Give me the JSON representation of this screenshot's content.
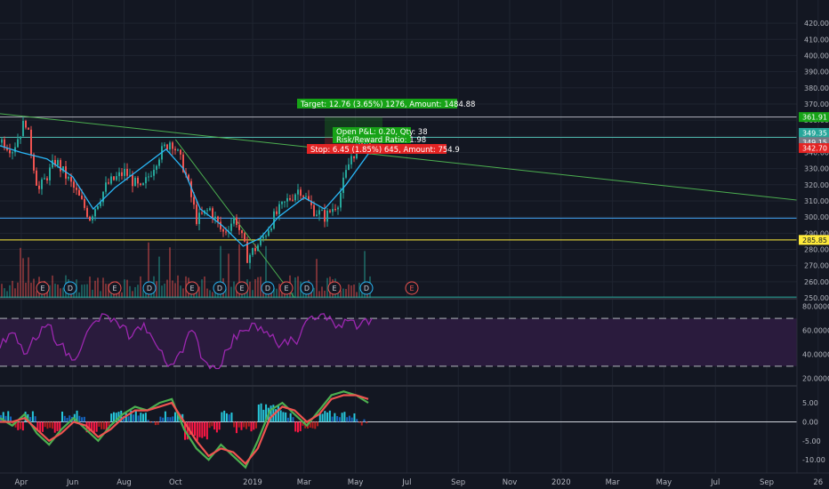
{
  "colors": {
    "background": "#131722",
    "grid": "#1f2430",
    "axis_text": "#b2b5be",
    "candle_up": "#26a69a",
    "candle_down": "#ef5350",
    "ma_line": "#29b6f6",
    "trend_line": "#4caf50",
    "hline_blue": "#42a5f5",
    "hline_yellow": "#ffeb3b",
    "hline_gray": "#b2b5be",
    "rsi_line": "#9c27b0",
    "rsi_band": "#2a1b3d",
    "macd_fast": "#4caf50",
    "macd_slow": "#ef5350",
    "target_green": "#17a317",
    "stop_red": "#e32424"
  },
  "chart_data": [
    {
      "type": "line",
      "panel": "price",
      "y_ticks": [
        "420.00",
        "410.00",
        "400.00",
        "390.00",
        "380.00",
        "370.00",
        "360.00",
        "350.00",
        "340.00",
        "330.00",
        "320.00",
        "310.00",
        "300.00",
        "290.00",
        "280.00",
        "270.00",
        "260.00",
        "250.00"
      ],
      "ylim": [
        250,
        425
      ],
      "x_ticks": [
        "Apr",
        "Jun",
        "Aug",
        "Oct",
        "2019",
        "Mar",
        "May",
        "Jul",
        "Sep",
        "Nov",
        "2020",
        "Mar",
        "May",
        "Jul",
        "Sep",
        "26"
      ],
      "series": [
        {
          "x": [
            "2018-03-01",
            "2018-03-20",
            "2018-04-05",
            "2018-04-20",
            "2018-05-10",
            "2018-06-01",
            "2018-06-20",
            "2018-07-10",
            "2018-08-01",
            "2018-08-20",
            "2018-09-10",
            "2018-09-25",
            "2018-10-10",
            "2018-10-25",
            "2018-11-10",
            "2018-11-25",
            "2018-12-10",
            "2018-12-24",
            "2019-01-10",
            "2019-01-25",
            "2019-02-10",
            "2019-02-25",
            "2019-03-10",
            "2019-03-25",
            "2019-04-10",
            "2019-04-25",
            "2019-05-10",
            "2019-05-20"
          ],
          "values": [
            350,
            342,
            360,
            316,
            335,
            318,
            300,
            320,
            328,
            316,
            338,
            348,
            330,
            298,
            305,
            290,
            300,
            275,
            285,
            300,
            310,
            318,
            305,
            300,
            310,
            338,
            346,
            342
          ]
        },
        {
          "x": [
            "2018-03-01",
            "2018-04-01",
            "2018-05-01",
            "2018-06-01",
            "2018-06-25",
            "2018-07-20",
            "2018-08-20",
            "2018-09-20",
            "2018-10-10",
            "2018-10-30",
            "2018-11-25",
            "2018-12-20",
            "2019-01-10",
            "2019-02-01",
            "2019-03-01",
            "2019-03-25",
            "2019-04-20",
            "2019-05-20"
          ],
          "values": [
            345,
            340,
            336,
            325,
            305,
            318,
            330,
            342,
            330,
            305,
            295,
            282,
            287,
            300,
            312,
            305,
            320,
            342
          ]
        }
      ],
      "volume_markers": [
        "E",
        "D",
        "E",
        "D",
        "E",
        "D",
        "E",
        "D",
        "E",
        "D",
        "E",
        "D",
        "E"
      ],
      "price_labels": [
        "361.91",
        "349.35",
        "349.15",
        "342.70",
        "285.85"
      ],
      "annotations": {
        "target": "Target: 12.76 (3.65%) 1276, Amount: 1484.88",
        "open_pl": "Open P&L: 0.20, Qty: 38",
        "risk_reward": "Risk/Reward Ratio: 1.98",
        "stop": "Stop: 6.45 (1.85%) 645, Amount: 754.9"
      }
    },
    {
      "type": "line",
      "panel": "rsi",
      "y_ticks": [
        "80.0000",
        "60.0000",
        "40.0000",
        "20.0000"
      ],
      "ylim": [
        15,
        85
      ],
      "bands": [
        30,
        70
      ],
      "values": [
        45,
        58,
        40,
        52,
        65,
        48,
        35,
        52,
        68,
        72,
        62,
        55,
        66,
        48,
        30,
        42,
        60,
        35,
        28,
        44,
        60,
        66,
        58,
        50,
        48,
        55,
        72,
        74,
        62,
        68,
        64,
        70
      ]
    },
    {
      "type": "line",
      "panel": "macd",
      "y_ticks": [
        "5.00",
        "0.00",
        "-5.00",
        "-10.00"
      ],
      "ylim": [
        -13,
        9
      ],
      "series": [
        {
          "values": [
            1,
            -1,
            2,
            -3,
            -6,
            -2,
            1,
            -2,
            -5,
            -1,
            2,
            4,
            3,
            5,
            6,
            -2,
            -7,
            -10,
            -6,
            -9,
            -12,
            -5,
            3,
            5,
            2,
            -1,
            3,
            7,
            8,
            7,
            5
          ]
        },
        {
          "values": [
            0,
            0,
            1,
            -2,
            -5,
            -3,
            0,
            -1,
            -4,
            -2,
            1,
            3,
            3,
            4,
            5,
            0,
            -5,
            -9,
            -7,
            -8,
            -11,
            -7,
            1,
            4,
            3,
            0,
            2,
            6,
            7,
            7,
            6
          ]
        }
      ],
      "histogram": [
        1,
        -1,
        1,
        -1,
        -1,
        1,
        1,
        -1,
        -1,
        1,
        1,
        1,
        0,
        1,
        1,
        -2,
        -2,
        -1,
        1,
        -1,
        -1,
        2,
        2,
        1,
        -1,
        -1,
        1,
        1,
        1,
        0,
        -1
      ]
    }
  ]
}
